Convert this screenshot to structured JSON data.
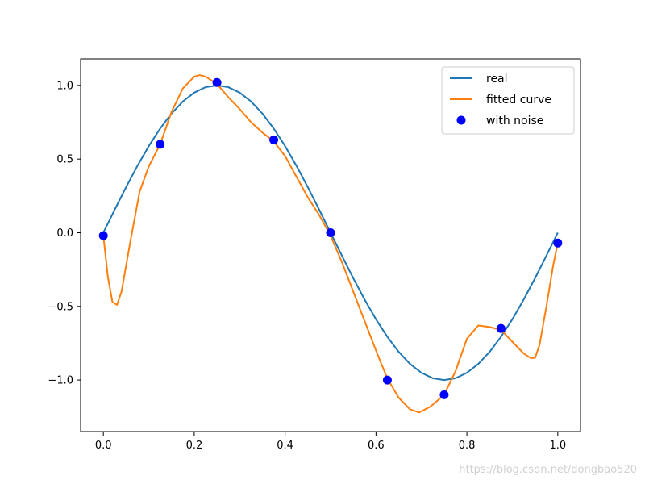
{
  "chart_data": {
    "type": "line",
    "title": "",
    "xlabel": "",
    "ylabel": "",
    "xlim": [
      -0.05,
      1.05
    ],
    "ylim": [
      -1.35,
      1.18
    ],
    "xticks": [
      0.0,
      0.2,
      0.4,
      0.6,
      0.8,
      1.0
    ],
    "xtick_labels": [
      "0.0",
      "0.2",
      "0.4",
      "0.6",
      "0.8",
      "1.0"
    ],
    "yticks": [
      -1.0,
      -0.5,
      0.0,
      0.5,
      1.0
    ],
    "ytick_labels": [
      "−1.0",
      "−0.5",
      "0.0",
      "0.5",
      "1.0"
    ],
    "grid": false,
    "legend_position": "top-right",
    "series": [
      {
        "name": "real",
        "kind": "line",
        "color": "#1f77b4",
        "x": [
          0.0,
          0.025,
          0.05,
          0.075,
          0.1,
          0.125,
          0.15,
          0.175,
          0.2,
          0.225,
          0.25,
          0.275,
          0.3,
          0.325,
          0.35,
          0.375,
          0.4,
          0.425,
          0.45,
          0.475,
          0.5,
          0.525,
          0.55,
          0.575,
          0.6,
          0.625,
          0.65,
          0.675,
          0.7,
          0.725,
          0.75,
          0.775,
          0.8,
          0.825,
          0.85,
          0.875,
          0.9,
          0.925,
          0.95,
          0.975,
          1.0
        ],
        "y": [
          0.0,
          0.156,
          0.309,
          0.454,
          0.588,
          0.707,
          0.809,
          0.891,
          0.951,
          0.988,
          1.0,
          0.988,
          0.951,
          0.891,
          0.809,
          0.707,
          0.588,
          0.454,
          0.309,
          0.156,
          0.0,
          -0.156,
          -0.309,
          -0.454,
          -0.588,
          -0.707,
          -0.809,
          -0.891,
          -0.951,
          -0.988,
          -1.0,
          -0.988,
          -0.951,
          -0.891,
          -0.809,
          -0.707,
          -0.588,
          -0.454,
          -0.309,
          -0.156,
          0.0
        ]
      },
      {
        "name": "fitted curve",
        "kind": "line",
        "color": "#ff7f0e",
        "x": [
          0.0,
          0.01,
          0.02,
          0.03,
          0.04,
          0.06,
          0.08,
          0.1,
          0.125,
          0.15,
          0.175,
          0.2,
          0.212,
          0.225,
          0.25,
          0.275,
          0.3,
          0.325,
          0.35,
          0.375,
          0.4,
          0.425,
          0.45,
          0.475,
          0.5,
          0.525,
          0.55,
          0.575,
          0.6,
          0.625,
          0.65,
          0.675,
          0.695,
          0.72,
          0.75,
          0.775,
          0.8,
          0.825,
          0.85,
          0.875,
          0.9,
          0.925,
          0.94,
          0.95,
          0.96,
          0.975,
          0.99,
          1.0
        ],
        "y": [
          -0.02,
          -0.3,
          -0.47,
          -0.49,
          -0.4,
          -0.05,
          0.28,
          0.45,
          0.6,
          0.82,
          0.98,
          1.06,
          1.07,
          1.06,
          1.01,
          0.92,
          0.84,
          0.75,
          0.68,
          0.62,
          0.52,
          0.38,
          0.24,
          0.12,
          -0.02,
          -0.2,
          -0.4,
          -0.6,
          -0.8,
          -0.99,
          -1.12,
          -1.2,
          -1.22,
          -1.18,
          -1.1,
          -0.94,
          -0.72,
          -0.63,
          -0.64,
          -0.66,
          -0.74,
          -0.82,
          -0.85,
          -0.85,
          -0.76,
          -0.5,
          -0.22,
          -0.07
        ]
      },
      {
        "name": "with noise",
        "kind": "scatter",
        "color": "#0000ff",
        "x": [
          0.0,
          0.125,
          0.25,
          0.375,
          0.5,
          0.625,
          0.75,
          0.875,
          1.0
        ],
        "y": [
          -0.02,
          0.6,
          1.02,
          0.63,
          0.0,
          -1.0,
          -1.1,
          -0.65,
          -0.07
        ]
      }
    ]
  },
  "watermark": "https://blog.csdn.net/dongbao520"
}
